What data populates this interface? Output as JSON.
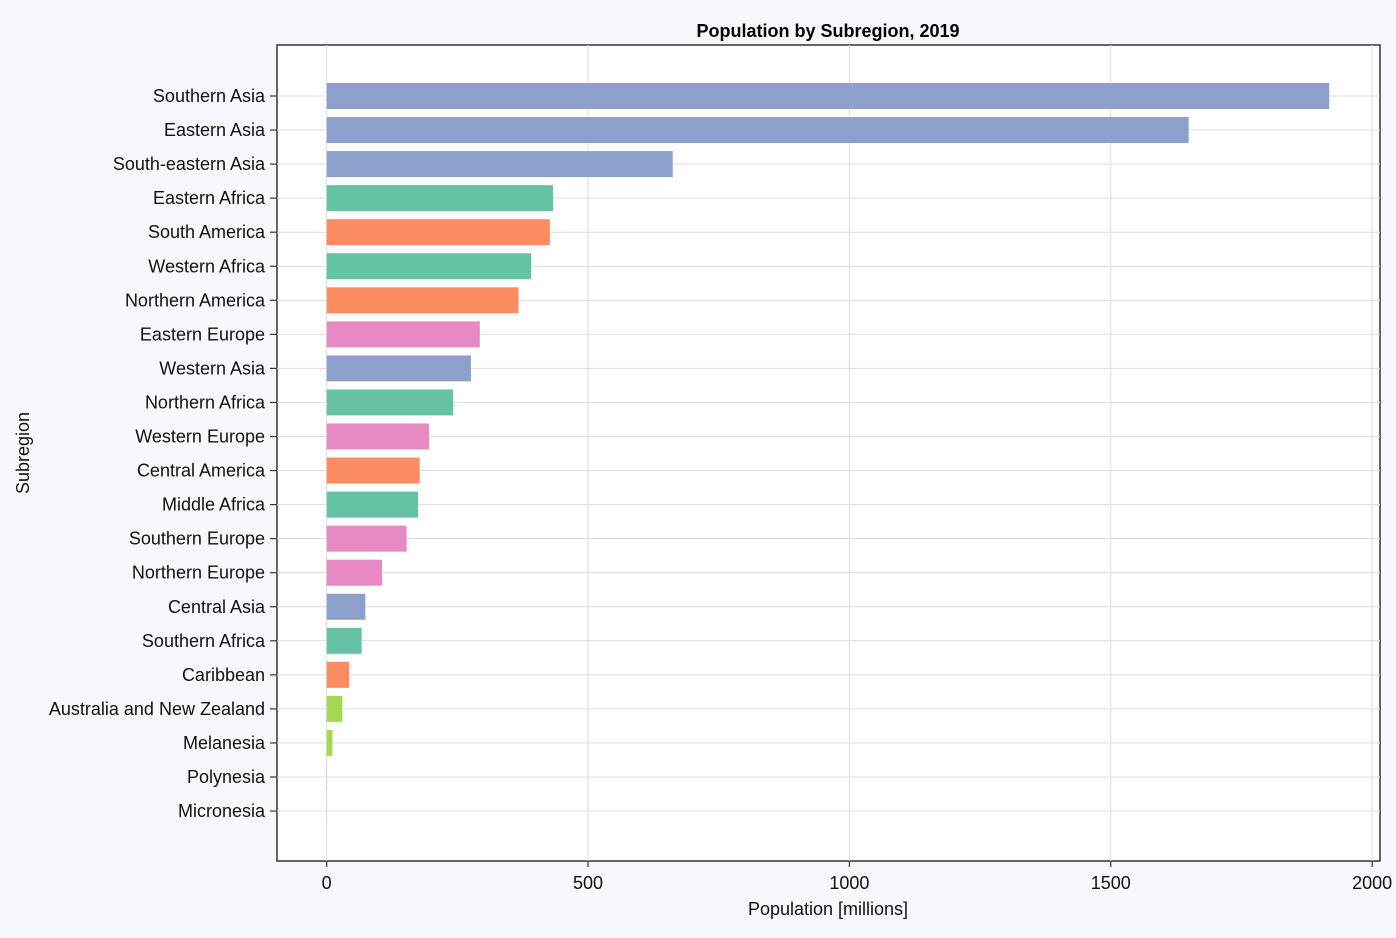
{
  "chart_data": {
    "type": "bar",
    "orientation": "horizontal",
    "title": "Population by Subregion, 2019",
    "xlabel": "Population [millions]",
    "ylabel": "Subregion",
    "xlim": [
      -95,
      2015
    ],
    "xticks": [
      0,
      500,
      1000,
      1500,
      2000
    ],
    "grid": true,
    "colors": {
      "Asia": "#8da0cb",
      "Africa": "#66c2a5",
      "Americas": "#fc8d62",
      "Europe": "#e78ac3",
      "Oceania": "#a6d854"
    },
    "bars": [
      {
        "category": "Southern Asia",
        "value": 1918,
        "group": "Asia"
      },
      {
        "category": "Eastern Asia",
        "value": 1649,
        "group": "Asia"
      },
      {
        "category": "South-eastern Asia",
        "value": 662,
        "group": "Asia"
      },
      {
        "category": "Eastern Africa",
        "value": 433,
        "group": "Africa"
      },
      {
        "category": "South America",
        "value": 427,
        "group": "Americas"
      },
      {
        "category": "Western Africa",
        "value": 391,
        "group": "Africa"
      },
      {
        "category": "Northern America",
        "value": 367,
        "group": "Americas"
      },
      {
        "category": "Eastern Europe",
        "value": 293,
        "group": "Europe"
      },
      {
        "category": "Western Asia",
        "value": 276,
        "group": "Asia"
      },
      {
        "category": "Northern Africa",
        "value": 242,
        "group": "Africa"
      },
      {
        "category": "Western Europe",
        "value": 196,
        "group": "Europe"
      },
      {
        "category": "Central America",
        "value": 178,
        "group": "Americas"
      },
      {
        "category": "Middle Africa",
        "value": 175,
        "group": "Africa"
      },
      {
        "category": "Southern Europe",
        "value": 153,
        "group": "Europe"
      },
      {
        "category": "Northern Europe",
        "value": 106,
        "group": "Europe"
      },
      {
        "category": "Central Asia",
        "value": 74,
        "group": "Asia"
      },
      {
        "category": "Southern Africa",
        "value": 67,
        "group": "Africa"
      },
      {
        "category": "Caribbean",
        "value": 43,
        "group": "Americas"
      },
      {
        "category": "Australia and New Zealand",
        "value": 30,
        "group": "Oceania"
      },
      {
        "category": "Melanesia",
        "value": 11,
        "group": "Oceania"
      },
      {
        "category": "Polynesia",
        "value": 0.7,
        "group": "Oceania"
      },
      {
        "category": "Micronesia",
        "value": 0.5,
        "group": "Oceania"
      }
    ]
  }
}
